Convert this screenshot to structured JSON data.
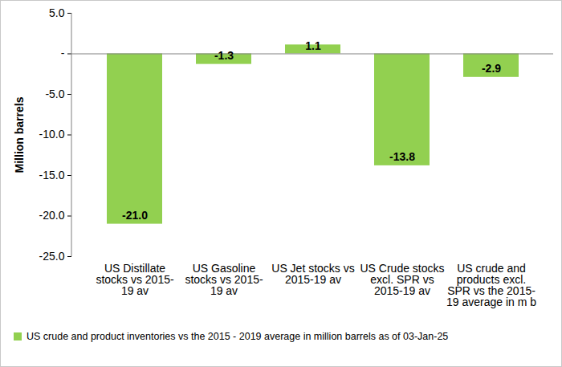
{
  "chart_data": {
    "type": "bar",
    "ylabel": "Million barrels",
    "categories": [
      "US Distillate stocks vs 2015-19 av",
      "US Gasoline stocks vs 2015-19 av",
      "US Jet stocks vs 2015-19 av",
      "US Crude stocks excl. SPR vs 2015-19 av",
      "US crude and products excl. SPR vs the 2015-19 average in m b"
    ],
    "series": [
      {
        "name": "US crude and product inventories vs the 2015 - 2019 average in million barrels as of 03-Jan-25",
        "color": "#92d050",
        "values": [
          -21.0,
          -1.3,
          1.1,
          -13.8,
          -2.9
        ],
        "value_labels": [
          "-21.0",
          "-1.3",
          "1.1",
          "-13.8",
          "-2.9"
        ]
      }
    ],
    "ylim": [
      -25,
      5
    ],
    "yticks": [
      {
        "value": 5,
        "label": "5.0"
      },
      {
        "value": 0,
        "label": "-"
      },
      {
        "value": -5,
        "label": "-5.0"
      },
      {
        "value": -10,
        "label": "-10.0"
      },
      {
        "value": -15,
        "label": "-15.0"
      },
      {
        "value": -20,
        "label": "-20.0"
      },
      {
        "value": -25,
        "label": "-25.0"
      }
    ],
    "grid": false,
    "data_labels": true,
    "legend": "bottom"
  }
}
